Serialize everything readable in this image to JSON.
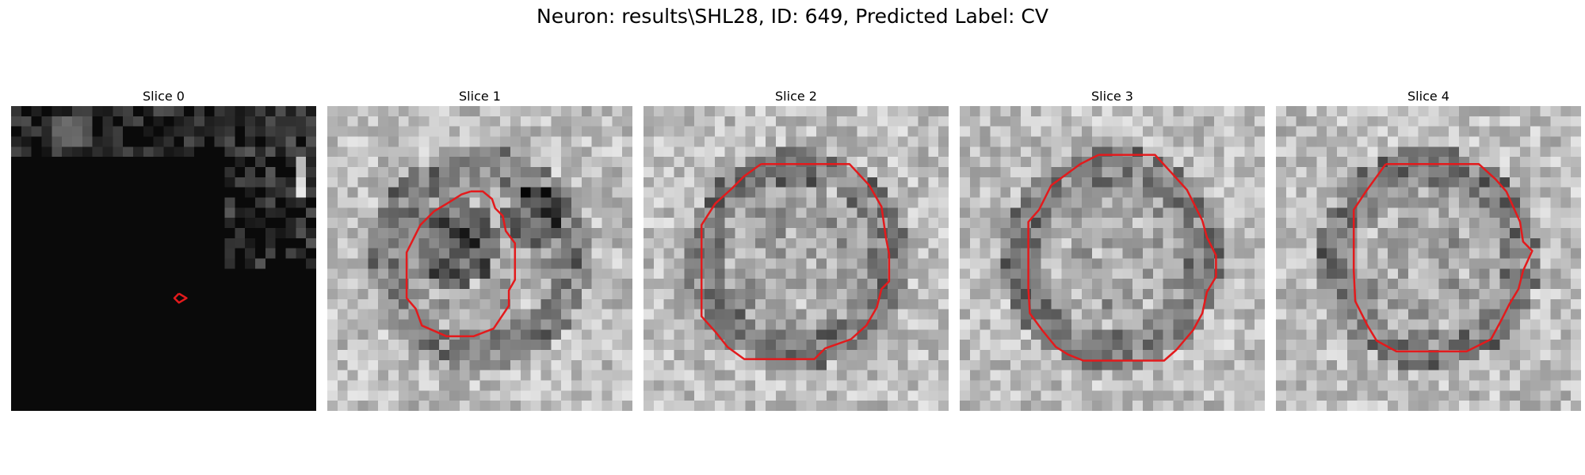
{
  "figure": {
    "title": "Neuron: results\\SHL28, ID: 649, Predicted Label: CV"
  },
  "panels": [
    {
      "title": "Slice 0",
      "background": "dark",
      "contour": [
        [
          0.55,
          0.615
        ],
        [
          0.575,
          0.63
        ],
        [
          0.55,
          0.645
        ],
        [
          0.535,
          0.63
        ],
        [
          0.55,
          0.615
        ]
      ]
    },
    {
      "title": "Slice 1",
      "background": "grey",
      "contour": [
        [
          0.47,
          0.28
        ],
        [
          0.51,
          0.28
        ],
        [
          0.54,
          0.305
        ],
        [
          0.55,
          0.335
        ],
        [
          0.575,
          0.36
        ],
        [
          0.585,
          0.41
        ],
        [
          0.615,
          0.45
        ],
        [
          0.615,
          0.57
        ],
        [
          0.595,
          0.605
        ],
        [
          0.595,
          0.655
        ],
        [
          0.545,
          0.73
        ],
        [
          0.48,
          0.755
        ],
        [
          0.39,
          0.755
        ],
        [
          0.31,
          0.72
        ],
        [
          0.29,
          0.665
        ],
        [
          0.26,
          0.63
        ],
        [
          0.26,
          0.48
        ],
        [
          0.28,
          0.44
        ],
        [
          0.305,
          0.39
        ],
        [
          0.35,
          0.345
        ],
        [
          0.4,
          0.315
        ],
        [
          0.44,
          0.29
        ],
        [
          0.47,
          0.28
        ]
      ]
    },
    {
      "title": "Slice 2",
      "background": "grey",
      "contour": [
        [
          0.385,
          0.19
        ],
        [
          0.675,
          0.19
        ],
        [
          0.74,
          0.26
        ],
        [
          0.78,
          0.33
        ],
        [
          0.795,
          0.435
        ],
        [
          0.805,
          0.485
        ],
        [
          0.805,
          0.575
        ],
        [
          0.78,
          0.6
        ],
        [
          0.765,
          0.66
        ],
        [
          0.73,
          0.72
        ],
        [
          0.68,
          0.765
        ],
        [
          0.595,
          0.795
        ],
        [
          0.56,
          0.83
        ],
        [
          0.33,
          0.83
        ],
        [
          0.275,
          0.79
        ],
        [
          0.235,
          0.74
        ],
        [
          0.19,
          0.69
        ],
        [
          0.19,
          0.39
        ],
        [
          0.235,
          0.32
        ],
        [
          0.29,
          0.27
        ],
        [
          0.33,
          0.23
        ],
        [
          0.385,
          0.19
        ]
      ]
    },
    {
      "title": "Slice 3",
      "background": "grey",
      "contour": [
        [
          0.455,
          0.16
        ],
        [
          0.64,
          0.16
        ],
        [
          0.695,
          0.22
        ],
        [
          0.745,
          0.275
        ],
        [
          0.795,
          0.375
        ],
        [
          0.81,
          0.43
        ],
        [
          0.84,
          0.49
        ],
        [
          0.84,
          0.56
        ],
        [
          0.81,
          0.61
        ],
        [
          0.795,
          0.68
        ],
        [
          0.765,
          0.735
        ],
        [
          0.71,
          0.8
        ],
        [
          0.67,
          0.835
        ],
        [
          0.405,
          0.835
        ],
        [
          0.355,
          0.815
        ],
        [
          0.315,
          0.79
        ],
        [
          0.27,
          0.735
        ],
        [
          0.23,
          0.68
        ],
        [
          0.225,
          0.6
        ],
        [
          0.225,
          0.38
        ],
        [
          0.26,
          0.34
        ],
        [
          0.3,
          0.26
        ],
        [
          0.395,
          0.19
        ],
        [
          0.455,
          0.16
        ]
      ]
    },
    {
      "title": "Slice 4",
      "background": "grey",
      "contour": [
        [
          0.36,
          0.19
        ],
        [
          0.665,
          0.19
        ],
        [
          0.72,
          0.24
        ],
        [
          0.755,
          0.28
        ],
        [
          0.8,
          0.38
        ],
        [
          0.81,
          0.445
        ],
        [
          0.84,
          0.475
        ],
        [
          0.81,
          0.54
        ],
        [
          0.795,
          0.6
        ],
        [
          0.765,
          0.65
        ],
        [
          0.74,
          0.7
        ],
        [
          0.705,
          0.765
        ],
        [
          0.625,
          0.805
        ],
        [
          0.395,
          0.805
        ],
        [
          0.33,
          0.77
        ],
        [
          0.3,
          0.72
        ],
        [
          0.26,
          0.64
        ],
        [
          0.255,
          0.54
        ],
        [
          0.255,
          0.34
        ],
        [
          0.295,
          0.28
        ],
        [
          0.36,
          0.19
        ]
      ]
    }
  ],
  "colors": {
    "contour": "#e31a1c",
    "background": "#ffffff"
  }
}
